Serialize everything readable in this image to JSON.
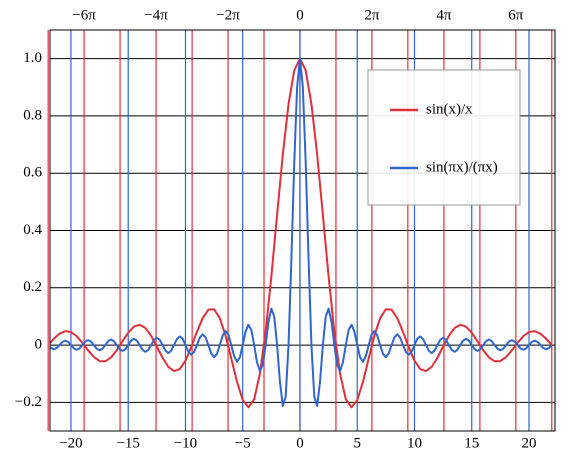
{
  "chart_data": {
    "type": "line",
    "xlim": [
      -21.83,
      22.27
    ],
    "ylim": [
      -0.3,
      1.1
    ],
    "xticks": [
      {
        "value": -20,
        "label": "−20"
      },
      {
        "value": -15,
        "label": "−15"
      },
      {
        "value": -10,
        "label": "−10"
      },
      {
        "value": -5,
        "label": "−5"
      },
      0,
      5,
      10,
      15,
      20
    ],
    "x2ticks": [
      {
        "value": -18.85,
        "label": "−6π"
      },
      {
        "value": -12.57,
        "label": "−4π"
      },
      {
        "value": -6.28,
        "label": "−2π"
      },
      0,
      {
        "value": 6.28,
        "label": "2π"
      },
      {
        "value": 12.57,
        "label": "4π"
      },
      {
        "value": 18.85,
        "label": "6π"
      }
    ],
    "x2minor_ticks": [
      -21.99,
      -15.71,
      -9.42,
      -3.14,
      3.14,
      9.42,
      15.71,
      21.99
    ],
    "yticks": [
      {
        "value": -0.2,
        "label": "−0.2"
      },
      0,
      0.2,
      0.4,
      0.6,
      0.8,
      {
        "value": 1,
        "label": "1.0"
      }
    ],
    "grid": true,
    "xgrid_color": "#2f66d0",
    "x2grid_color": "#e0303a",
    "ygrid_color": "#000000",
    "legend": "upper right",
    "series": [
      {
        "name": "sin(x)/x",
        "color": "#e0303a",
        "x": [
          -22,
          -21.5,
          -21,
          -20.5,
          -20,
          -19.5,
          -19,
          -18.5,
          -18,
          -17.5,
          -17,
          -16.5,
          -16,
          -15.5,
          -15,
          -14.5,
          -14,
          -13.5,
          -13,
          -12.5,
          -12,
          -11.5,
          -11,
          -10.5,
          -10,
          -9.5,
          -9,
          -8.5,
          -8,
          -7.5,
          -7,
          -6.5,
          -6,
          -5.5,
          -5,
          -4.5,
          -4,
          -3.5,
          -3,
          -2.5,
          -2,
          -1.5,
          -1,
          -0.5,
          0,
          0.5,
          1,
          1.5,
          2,
          2.5,
          3,
          3.5,
          4,
          4.5,
          5,
          5.5,
          6,
          6.5,
          7,
          7.5,
          8,
          8.5,
          9,
          9.5,
          10,
          10.5,
          11,
          11.5,
          12,
          12.5,
          13,
          13.5,
          14,
          14.5,
          15,
          15.5,
          16,
          16.5,
          17,
          17.5,
          18,
          18.5,
          19,
          19.5,
          20,
          20.5,
          21,
          21.5,
          22
        ],
        "values": [
          -0.0004,
          0.0219,
          0.0398,
          0.0486,
          0.0456,
          0.0311,
          0.0079,
          -0.0183,
          -0.0417,
          -0.056,
          -0.0566,
          -0.0431,
          -0.018,
          0.0133,
          0.0434,
          0.0645,
          0.0708,
          0.0595,
          0.0323,
          -0.0053,
          -0.0447,
          -0.0761,
          -0.0909,
          -0.0838,
          -0.0544,
          -0.0079,
          0.0458,
          0.0939,
          0.1237,
          0.1251,
          0.0939,
          0.0331,
          -0.0466,
          -0.1283,
          -0.1918,
          -0.2172,
          -0.1892,
          -0.1002,
          0.047,
          0.2394,
          0.4546,
          0.665,
          0.8415,
          0.9589,
          1,
          0.9589,
          0.8415,
          0.665,
          0.4546,
          0.2394,
          0.047,
          -0.1002,
          -0.1892,
          -0.2172,
          -0.1918,
          -0.1283,
          -0.0466,
          0.0331,
          0.0939,
          0.1251,
          0.1237,
          0.0939,
          0.0458,
          -0.0079,
          -0.0544,
          -0.0838,
          -0.0909,
          -0.0761,
          -0.0447,
          -0.0053,
          0.0323,
          0.0595,
          0.0708,
          0.0645,
          0.0434,
          0.0133,
          -0.018,
          -0.0431,
          -0.0566,
          -0.056,
          -0.0417,
          -0.0183,
          0.0079,
          0.0311,
          0.0456,
          0.0486,
          0.0398,
          0.0219,
          -0.0004
        ]
      },
      {
        "name": "sin(πx)/(πx)",
        "color": "#2f66d0",
        "x": [
          -22,
          -21.75,
          -21.5,
          -21.25,
          -21,
          -20.75,
          -20.5,
          -20.25,
          -20,
          -19.75,
          -19.5,
          -19.25,
          -19,
          -18.75,
          -18.5,
          -18.25,
          -18,
          -17.75,
          -17.5,
          -17.25,
          -17,
          -16.75,
          -16.5,
          -16.25,
          -16,
          -15.75,
          -15.5,
          -15.25,
          -15,
          -14.75,
          -14.5,
          -14.25,
          -14,
          -13.75,
          -13.5,
          -13.25,
          -13,
          -12.75,
          -12.5,
          -12.25,
          -12,
          -11.75,
          -11.5,
          -11.25,
          -11,
          -10.75,
          -10.5,
          -10.25,
          -10,
          -9.75,
          -9.5,
          -9.25,
          -9,
          -8.75,
          -8.5,
          -8.25,
          -8,
          -7.75,
          -7.5,
          -7.25,
          -7,
          -6.75,
          -6.5,
          -6.25,
          -6,
          -5.75,
          -5.5,
          -5.25,
          -5,
          -4.75,
          -4.5,
          -4.25,
          -4,
          -3.75,
          -3.5,
          -3.25,
          -3,
          -2.75,
          -2.5,
          -2.25,
          -2,
          -1.75,
          -1.5,
          -1.25,
          -1,
          -0.75,
          -0.5,
          -0.25,
          0,
          0.25,
          0.5,
          0.75,
          1,
          1.25,
          1.5,
          1.75,
          2,
          2.25,
          2.5,
          2.75,
          3,
          3.25,
          3.5,
          3.75,
          4,
          4.25,
          4.5,
          4.75,
          5,
          5.25,
          5.5,
          5.75,
          6,
          6.25,
          6.5,
          6.75,
          7,
          7.25,
          7.5,
          7.75,
          8,
          8.25,
          8.5,
          8.75,
          9,
          9.25,
          9.5,
          9.75,
          10,
          10.25,
          10.5,
          10.75,
          11,
          11.25,
          11.5,
          11.75,
          12,
          12.25,
          12.5,
          12.75,
          13,
          13.25,
          13.5,
          13.75,
          14,
          14.25,
          14.5,
          14.75,
          15,
          15.25,
          15.5,
          15.75,
          16,
          16.25,
          16.5,
          16.75,
          17,
          17.25,
          17.5,
          17.75,
          18,
          18.25,
          18.5,
          18.75,
          19,
          19.25,
          19.5,
          19.75,
          20,
          20.25,
          20.5,
          20.75,
          21,
          21.25,
          21.5,
          21.75,
          22
        ],
        "values": [
          0,
          -0.0103,
          -0.0148,
          -0.0106,
          0,
          0.0108,
          0.0155,
          0.0111,
          0,
          -0.0114,
          -0.0163,
          -0.0117,
          0,
          0.012,
          0.0172,
          0.0123,
          0,
          -0.0127,
          -0.0182,
          -0.013,
          0,
          0.0134,
          0.0193,
          0.0139,
          0,
          -0.0143,
          -0.0205,
          -0.0148,
          0,
          0.0153,
          0.022,
          0.0158,
          0,
          -0.0164,
          -0.0236,
          -0.017,
          0,
          0.0177,
          0.0255,
          0.0184,
          0,
          -0.0192,
          -0.0277,
          -0.02,
          0,
          0.0209,
          0.0303,
          0.022,
          0,
          -0.0231,
          -0.0335,
          -0.0243,
          0,
          0.0257,
          0.0374,
          0.0273,
          0,
          -0.029,
          -0.0424,
          -0.031,
          0,
          0.0333,
          0.049,
          0.036,
          0,
          -0.0391,
          -0.0579,
          -0.0429,
          0,
          0.0474,
          0.0707,
          0.053,
          0,
          -0.06,
          -0.0909,
          -0.0693,
          0,
          0.0819,
          0.1273,
          0.1,
          0,
          -0.1286,
          -0.2122,
          -0.1801,
          0,
          0.3001,
          0.6366,
          0.9003,
          1,
          0.9003,
          0.6366,
          0.3001,
          0,
          -0.1801,
          -0.2122,
          -0.1286,
          0,
          0.1,
          0.1273,
          0.0819,
          0,
          -0.0693,
          -0.0909,
          -0.06,
          0,
          0.053,
          0.0707,
          0.0474,
          0,
          -0.0429,
          -0.0579,
          -0.0391,
          0,
          0.036,
          0.049,
          0.0333,
          0,
          -0.031,
          -0.0424,
          -0.029,
          0,
          0.0273,
          0.0374,
          0.0257,
          0,
          -0.0243,
          -0.0335,
          -0.0231,
          0,
          0.022,
          0.0303,
          0.0209,
          0,
          -0.02,
          -0.0277,
          -0.0192,
          0,
          0.0184,
          0.0255,
          0.0177,
          0,
          -0.017,
          -0.0236,
          -0.0164,
          0,
          0.0158,
          0.022,
          0.0153,
          0,
          -0.0148,
          -0.0205,
          -0.0143,
          0,
          0.0139,
          0.0193,
          0.0134,
          0,
          -0.013,
          -0.0182,
          -0.0127,
          0,
          0.0123,
          0.0172,
          0.012,
          0,
          -0.0117,
          -0.0163,
          -0.0114,
          0,
          0.0111,
          0.0155,
          0.0108,
          0,
          -0.0106,
          -0.0148,
          -0.0103,
          0
        ]
      }
    ]
  }
}
